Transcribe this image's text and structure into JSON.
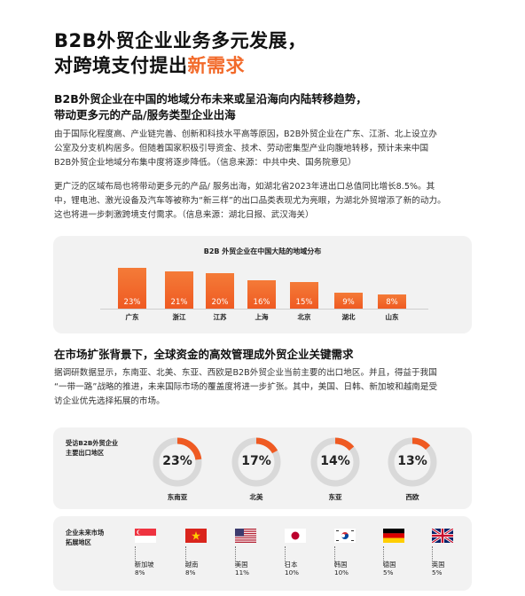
{
  "title": {
    "line1": "B2B外贸企业业务多元发展，",
    "line2_prefix": "对跨境支付提出",
    "line2_accent": "新需求"
  },
  "section1": {
    "heading_line1": "B2B外贸企业在中国的地域分布未来或呈沿海向内陆转移趋势，",
    "heading_line2": "带动更多元的产品/服务类型企业出海",
    "para1_line1": "由于国际化程度高、产业链完善、创新和科技水平高等原因，B2B外贸企业在广东、江浙、北上设立办",
    "para1_line2": "公室及分支机构居多。但随着国家积极引导资金、技术、劳动密集型产业向腹地转移，预计未来中国",
    "para1_line3": "B2B外贸企业地域分布集中度将逐步降低。（信息来源：中共中央、国务院意见）",
    "para2_line1": "更广泛的区域布局也将带动更多元的产品/ 服务出海，如湖北省2023年进出口总值同比增长8.5%。其",
    "para2_line2": "中，锂电池、激光设备及汽车等被称为“新三样”的出口品类表现尤为亮眼，为湖北外贸增添了新的动力。",
    "para2_line3": "这也将进一步刺激跨境支付需求。（信息来源：湖北日报、武汉海关）"
  },
  "chart_data": {
    "type": "bar",
    "title": "B2B 外贸企业在中国大陆的地域分布",
    "categories": [
      "广东",
      "浙江",
      "江苏",
      "上海",
      "北京",
      "湖北",
      "山东"
    ],
    "values": [
      23,
      21,
      20,
      16,
      15,
      9,
      8
    ],
    "value_labels": [
      "23%",
      "21%",
      "20%",
      "16%",
      "15%",
      "9%",
      "8%"
    ],
    "unit": "%",
    "ylim": [
      0,
      23
    ],
    "grid": false,
    "colors": {
      "bar_top": "#f47b38",
      "bar_bottom": "#ef5a22"
    }
  },
  "section2": {
    "heading": "在市场扩张背景下，全球资金的高效管理成外贸企业关键需求",
    "para_line1": "据调研数据显示，东南亚、北美、东亚、西欧是B2B外贸企业当前主要的出口地区。并且，得益于我国",
    "para_line2": "“一带一路”战略的推进，未来国际市场的覆盖度将进一步扩张。其中，美国、日韩、新加坡和越南是受",
    "para_line3": "访企业优先选择拓展的市场。"
  },
  "export_regions": {
    "label_line1": "受访B2B外贸企业",
    "label_line2": "主要出口地区",
    "items": [
      {
        "name": "东南亚",
        "pct_label": "23%",
        "value": 23
      },
      {
        "name": "北美",
        "pct_label": "17%",
        "value": 17
      },
      {
        "name": "东亚",
        "pct_label": "14%",
        "value": 14
      },
      {
        "name": "西欧",
        "pct_label": "13%",
        "value": 13
      }
    ],
    "colors": {
      "accent": "#ef5a22",
      "track": "#d9d9d9"
    }
  },
  "future_markets": {
    "label_line1": "企业未来市场",
    "label_line2": "拓展地区",
    "items": [
      {
        "name": "新加坡",
        "pct": "8%",
        "flag": "singapore-flag"
      },
      {
        "name": "越南",
        "pct": "8%",
        "flag": "vietnam-flag"
      },
      {
        "name": "美国",
        "pct": "11%",
        "flag": "usa-flag"
      },
      {
        "name": "日本",
        "pct": "10%",
        "flag": "japan-flag"
      },
      {
        "name": "韩国",
        "pct": "10%",
        "flag": "korea-flag"
      },
      {
        "name": "德国",
        "pct": "5%",
        "flag": "germany-flag"
      },
      {
        "name": "英国",
        "pct": "5%",
        "flag": "uk-flag"
      }
    ]
  }
}
